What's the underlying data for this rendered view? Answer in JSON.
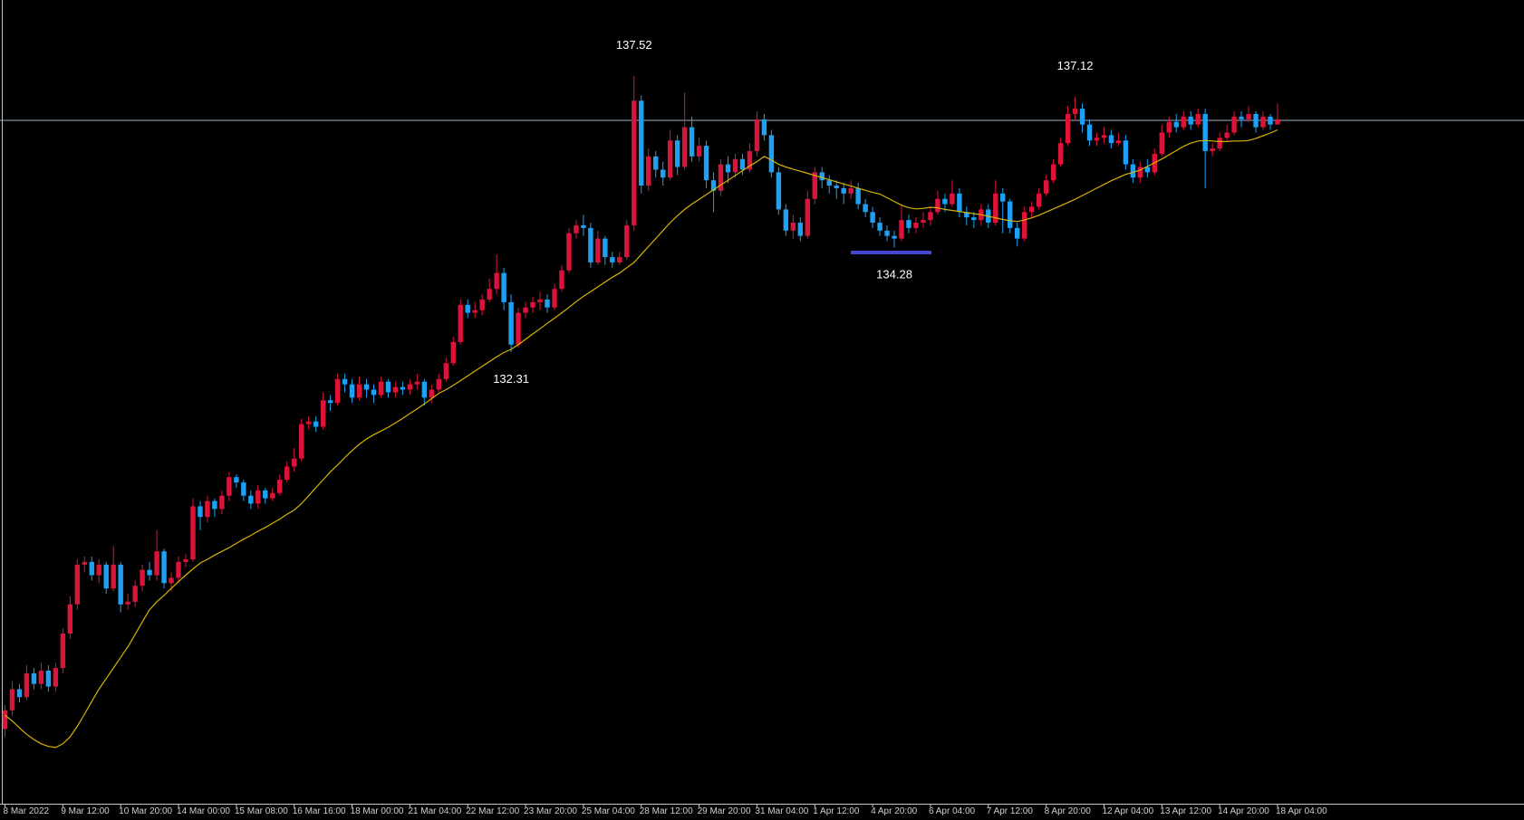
{
  "chart_data": {
    "type": "candlestick",
    "up_color": "#dc143c",
    "down_color": "#1ea0f5",
    "ylim": [
      123.79,
      138.95
    ],
    "price_line": {
      "value": 136.68,
      "color": "#9fb2c6"
    },
    "annotations": [
      137.52,
      132.31,
      134.28,
      137.12
    ],
    "categories": [
      "8 Mar 2022",
      null,
      null,
      null,
      null,
      null,
      null,
      null,
      "9 Mar 12:00",
      null,
      null,
      null,
      null,
      null,
      null,
      null,
      "10 Mar 20:00",
      null,
      null,
      null,
      null,
      null,
      null,
      null,
      "14 Mar 00:00",
      null,
      null,
      null,
      null,
      null,
      null,
      null,
      "15 Mar 08:00",
      null,
      null,
      null,
      null,
      null,
      null,
      null,
      "16 Mar 16:00",
      null,
      null,
      null,
      null,
      null,
      null,
      null,
      "18 Mar 00:00",
      null,
      null,
      null,
      null,
      null,
      null,
      null,
      "21 Mar 04:00",
      null,
      null,
      null,
      null,
      null,
      null,
      null,
      "22 Mar 12:00",
      null,
      null,
      null,
      null,
      null,
      null,
      null,
      "23 Mar 20:00",
      null,
      null,
      null,
      null,
      null,
      null,
      null,
      "25 Mar 04:00",
      null,
      null,
      null,
      null,
      null,
      null,
      null,
      "28 Mar 12:00",
      null,
      null,
      null,
      null,
      null,
      null,
      null,
      "29 Mar 20:00",
      null,
      null,
      null,
      null,
      null,
      null,
      null,
      "31 Mar 04:00",
      null,
      null,
      null,
      null,
      null,
      null,
      null,
      "1 Apr 12:00",
      null,
      null,
      null,
      null,
      null,
      null,
      null,
      "4 Apr 20:00",
      null,
      null,
      null,
      null,
      null,
      null,
      null,
      "6 Apr 04:00",
      null,
      null,
      null,
      null,
      null,
      null,
      null,
      "7 Apr 12:00",
      null,
      null,
      null,
      null,
      null,
      null,
      null,
      "8 Apr 20:00",
      null,
      null,
      null,
      null,
      null,
      null,
      null,
      "12 Apr 04:00",
      null,
      null,
      null,
      null,
      null,
      null,
      null,
      "13 Apr 12:00",
      null,
      null,
      null,
      null,
      null,
      null,
      null,
      "14 Apr 20:00",
      null,
      null,
      null,
      null,
      null,
      null,
      null,
      "18 Apr 04:00"
    ],
    "open": [
      125.2,
      125.55,
      125.95,
      125.8,
      126.25,
      126.05,
      126.3,
      126.0,
      126.35,
      127.0,
      127.55,
      128.3,
      128.35,
      128.1,
      128.3,
      127.85,
      128.3,
      127.55,
      127.6,
      127.9,
      128.2,
      128.1,
      128.55,
      127.95,
      128.05,
      128.35,
      128.4,
      129.4,
      129.2,
      129.5,
      129.35,
      129.6,
      129.95,
      129.85,
      129.6,
      129.45,
      129.7,
      129.55,
      129.65,
      129.9,
      130.15,
      130.3,
      130.95,
      131.0,
      130.9,
      131.4,
      131.35,
      131.8,
      131.7,
      131.45,
      131.7,
      131.6,
      131.5,
      131.75,
      131.55,
      131.65,
      131.6,
      131.7,
      131.75,
      131.45,
      131.6,
      131.8,
      132.1,
      132.5,
      133.2,
      133.05,
      133.1,
      133.3,
      133.5,
      133.8,
      133.25,
      132.45,
      133.05,
      133.15,
      133.25,
      133.3,
      133.15,
      133.5,
      133.85,
      134.55,
      134.7,
      134.65,
      134.0,
      134.45,
      134.1,
      134.0,
      134.1,
      134.7,
      137.05,
      135.45,
      136.0,
      135.75,
      135.6,
      136.3,
      135.8,
      136.55,
      136.0,
      136.2,
      135.55,
      135.35,
      135.85,
      135.7,
      135.95,
      135.75,
      136.1,
      136.7,
      136.4,
      135.7,
      135.0,
      134.6,
      134.75,
      134.5,
      135.2,
      135.7,
      135.55,
      135.45,
      135.4,
      135.3,
      135.4,
      135.1,
      134.95,
      134.75,
      134.6,
      134.5,
      134.45,
      134.8,
      134.65,
      134.75,
      134.8,
      134.95,
      135.2,
      135.1,
      135.3,
      134.95,
      134.85,
      134.8,
      135.0,
      134.75,
      135.3,
      135.15,
      134.65,
      134.45,
      134.95,
      135.05,
      135.3,
      135.55,
      135.85,
      136.25,
      136.8,
      136.9,
      136.6,
      136.3,
      136.35,
      136.4,
      136.25,
      136.3,
      135.85,
      135.6,
      135.8,
      135.7,
      136.05,
      136.45,
      136.65,
      136.55,
      136.75,
      136.6,
      136.8,
      136.1,
      136.15,
      136.35,
      136.45,
      136.75,
      136.7,
      136.8,
      136.55,
      136.75,
      136.6
    ],
    "high": [
      125.65,
      126.1,
      126.05,
      126.4,
      126.35,
      126.45,
      126.4,
      126.45,
      127.1,
      127.7,
      128.4,
      128.45,
      128.45,
      128.4,
      128.35,
      128.65,
      128.35,
      127.75,
      128.0,
      128.3,
      128.35,
      128.95,
      128.6,
      128.15,
      128.45,
      128.5,
      129.55,
      129.5,
      129.6,
      129.55,
      129.7,
      130.05,
      130.0,
      129.9,
      129.7,
      129.8,
      129.75,
      129.75,
      130.0,
      130.25,
      130.5,
      131.05,
      131.1,
      131.1,
      131.55,
      131.5,
      131.9,
      131.9,
      131.8,
      131.85,
      131.8,
      131.7,
      131.85,
      131.8,
      131.75,
      131.75,
      131.8,
      131.9,
      131.8,
      131.7,
      131.9,
      132.2,
      132.6,
      133.3,
      133.3,
      133.25,
      133.4,
      133.7,
      134.15,
      133.9,
      133.4,
      133.15,
      133.25,
      133.35,
      133.45,
      133.4,
      133.6,
      133.95,
      134.65,
      134.8,
      134.9,
      134.75,
      134.6,
      134.5,
      134.2,
      134.2,
      134.8,
      137.52,
      137.15,
      136.15,
      136.1,
      135.9,
      136.5,
      136.4,
      137.2,
      136.75,
      136.35,
      136.3,
      135.7,
      135.95,
      136.0,
      136.05,
      136.05,
      136.25,
      136.85,
      136.8,
      136.5,
      135.8,
      135.1,
      134.9,
      134.85,
      135.35,
      135.8,
      135.8,
      135.65,
      135.55,
      135.5,
      135.55,
      135.5,
      135.2,
      135.05,
      134.85,
      134.7,
      134.6,
      135.1,
      134.9,
      134.85,
      134.95,
      135.05,
      135.35,
      135.3,
      135.55,
      135.4,
      135.05,
      134.95,
      135.1,
      135.1,
      135.55,
      135.4,
      135.2,
      134.75,
      135.05,
      135.15,
      135.4,
      135.65,
      135.95,
      136.35,
      136.95,
      137.12,
      137.0,
      136.7,
      136.45,
      136.55,
      136.5,
      136.45,
      136.4,
      135.95,
      135.9,
      135.95,
      136.15,
      136.6,
      136.75,
      136.8,
      136.85,
      136.85,
      136.9,
      136.9,
      136.25,
      136.45,
      136.6,
      136.85,
      136.85,
      136.95,
      136.85,
      136.85,
      136.8,
      137.0
    ],
    "low": [
      125.05,
      125.45,
      125.7,
      125.75,
      125.95,
      125.95,
      125.9,
      125.9,
      126.25,
      126.9,
      127.45,
      128.15,
      128.0,
      127.95,
      127.75,
      127.8,
      127.4,
      127.45,
      127.5,
      127.8,
      128.0,
      128.0,
      127.85,
      127.8,
      127.95,
      128.25,
      128.35,
      128.95,
      129.1,
      129.2,
      129.25,
      129.5,
      129.75,
      129.5,
      129.35,
      129.35,
      129.45,
      129.5,
      129.6,
      129.85,
      130.05,
      130.25,
      130.85,
      130.8,
      130.85,
      131.2,
      131.3,
      131.55,
      131.35,
      131.4,
      131.45,
      131.35,
      131.45,
      131.45,
      131.45,
      131.5,
      131.5,
      131.6,
      131.3,
      131.35,
      131.55,
      131.75,
      132.05,
      132.45,
      132.95,
      132.95,
      133.0,
      133.25,
      133.4,
      133.1,
      132.31,
      132.4,
      132.95,
      133.05,
      133.1,
      133.05,
      133.1,
      133.45,
      133.8,
      134.45,
      134.5,
      133.9,
      133.95,
      133.95,
      133.9,
      133.95,
      134.05,
      134.6,
      135.3,
      135.35,
      135.6,
      135.45,
      135.55,
      135.65,
      135.75,
      135.9,
      135.9,
      135.4,
      134.95,
      135.25,
      135.5,
      135.6,
      135.65,
      135.7,
      136.0,
      136.3,
      135.6,
      134.9,
      134.5,
      134.45,
      134.4,
      134.45,
      135.1,
      135.4,
      135.3,
      135.2,
      135.1,
      135.2,
      135.0,
      134.85,
      134.65,
      134.5,
      134.4,
      134.28,
      134.4,
      134.55,
      134.55,
      134.65,
      134.7,
      134.9,
      134.95,
      135.05,
      134.85,
      134.7,
      134.65,
      134.7,
      134.65,
      134.7,
      134.55,
      134.55,
      134.3,
      134.4,
      134.85,
      135.0,
      135.25,
      135.5,
      135.8,
      136.2,
      136.7,
      136.45,
      136.2,
      136.2,
      136.25,
      136.15,
      136.2,
      135.75,
      135.5,
      135.5,
      135.6,
      135.65,
      136.0,
      136.35,
      136.45,
      136.5,
      136.5,
      136.55,
      135.4,
      136.0,
      136.1,
      136.3,
      136.4,
      136.55,
      136.65,
      136.45,
      136.5,
      136.5,
      136.6
    ],
    "close": [
      125.55,
      125.95,
      125.8,
      126.25,
      126.05,
      126.3,
      126.0,
      126.35,
      127.0,
      127.55,
      128.3,
      128.35,
      128.1,
      128.3,
      127.85,
      128.3,
      127.55,
      127.6,
      127.9,
      128.2,
      128.1,
      128.55,
      127.95,
      128.05,
      128.35,
      128.4,
      129.4,
      129.2,
      129.5,
      129.35,
      129.6,
      129.95,
      129.85,
      129.6,
      129.45,
      129.7,
      129.55,
      129.65,
      129.9,
      130.15,
      130.3,
      130.95,
      131.0,
      130.9,
      131.4,
      131.35,
      131.8,
      131.7,
      131.45,
      131.7,
      131.6,
      131.5,
      131.75,
      131.55,
      131.65,
      131.6,
      131.7,
      131.75,
      131.45,
      131.6,
      131.8,
      132.1,
      132.5,
      133.2,
      133.05,
      133.1,
      133.3,
      133.5,
      133.8,
      133.25,
      132.45,
      133.05,
      133.15,
      133.25,
      133.3,
      133.15,
      133.5,
      133.85,
      134.55,
      134.7,
      134.65,
      134.0,
      134.45,
      134.1,
      134.0,
      134.1,
      134.7,
      137.05,
      135.45,
      136.0,
      135.75,
      135.6,
      136.3,
      135.8,
      136.55,
      136.0,
      136.2,
      135.55,
      135.35,
      135.85,
      135.7,
      135.95,
      135.75,
      136.1,
      136.7,
      136.4,
      135.7,
      135.0,
      134.6,
      134.75,
      134.5,
      135.2,
      135.7,
      135.55,
      135.45,
      135.4,
      135.3,
      135.4,
      135.1,
      134.95,
      134.75,
      134.6,
      134.5,
      134.45,
      134.8,
      134.65,
      134.75,
      134.8,
      134.95,
      135.2,
      135.1,
      135.3,
      134.95,
      134.85,
      134.8,
      135.0,
      134.75,
      135.3,
      135.15,
      134.65,
      134.45,
      134.95,
      135.05,
      135.3,
      135.55,
      135.85,
      136.25,
      136.8,
      136.9,
      136.6,
      136.3,
      136.35,
      136.4,
      136.25,
      136.3,
      135.85,
      135.6,
      135.8,
      135.7,
      136.05,
      136.45,
      136.65,
      136.55,
      136.75,
      136.6,
      136.8,
      136.1,
      136.15,
      136.35,
      136.45,
      136.75,
      136.7,
      136.8,
      136.55,
      136.75,
      136.6,
      136.7
    ],
    "ma": {
      "color": "#d8b400",
      "values": [
        125.46,
        125.35,
        125.22,
        125.1,
        125.0,
        124.92,
        124.87,
        124.85,
        124.92,
        125.05,
        125.25,
        125.48,
        125.72,
        125.95,
        126.15,
        126.35,
        126.55,
        126.75,
        126.98,
        127.22,
        127.45,
        127.6,
        127.72,
        127.85,
        127.98,
        128.1,
        128.22,
        128.33,
        128.4,
        128.48,
        128.55,
        128.62,
        128.7,
        128.78,
        128.85,
        128.93,
        129.0,
        129.08,
        129.16,
        129.25,
        129.33,
        129.45,
        129.6,
        129.75,
        129.9,
        130.05,
        130.18,
        130.32,
        130.45,
        130.57,
        130.67,
        130.75,
        130.82,
        130.89,
        130.97,
        131.06,
        131.15,
        131.24,
        131.33,
        131.43,
        131.53,
        131.6,
        131.68,
        131.77,
        131.86,
        131.95,
        132.04,
        132.13,
        132.22,
        132.3,
        132.36,
        132.45,
        132.55,
        132.65,
        132.75,
        132.85,
        132.95,
        133.05,
        133.15,
        133.26,
        133.36,
        133.45,
        133.54,
        133.63,
        133.72,
        133.8,
        133.9,
        134.0,
        134.15,
        134.3,
        134.45,
        134.6,
        134.75,
        134.88,
        135.0,
        135.1,
        135.19,
        135.28,
        135.37,
        135.46,
        135.55,
        135.64,
        135.73,
        135.82,
        135.9,
        136.0,
        135.93,
        135.85,
        135.8,
        135.76,
        135.72,
        135.68,
        135.64,
        135.6,
        135.56,
        135.52,
        135.48,
        135.44,
        135.4,
        135.36,
        135.32,
        135.29,
        135.22,
        135.15,
        135.08,
        135.03,
        135.01,
        135.02,
        135.04,
        135.03,
        135.0,
        134.98,
        134.96,
        134.94,
        134.92,
        134.9,
        134.87,
        134.84,
        134.81,
        134.79,
        134.77,
        134.8,
        134.84,
        134.89,
        134.95,
        135.01,
        135.07,
        135.13,
        135.19,
        135.26,
        135.33,
        135.4,
        135.47,
        135.54,
        135.6,
        135.66,
        135.7,
        135.74,
        135.81,
        135.88,
        135.95,
        136.03,
        136.11,
        136.19,
        136.25,
        136.29,
        136.3,
        136.29,
        136.28,
        136.28,
        136.29,
        136.29,
        136.3,
        136.34,
        136.39,
        136.44,
        136.5
      ]
    }
  }
}
